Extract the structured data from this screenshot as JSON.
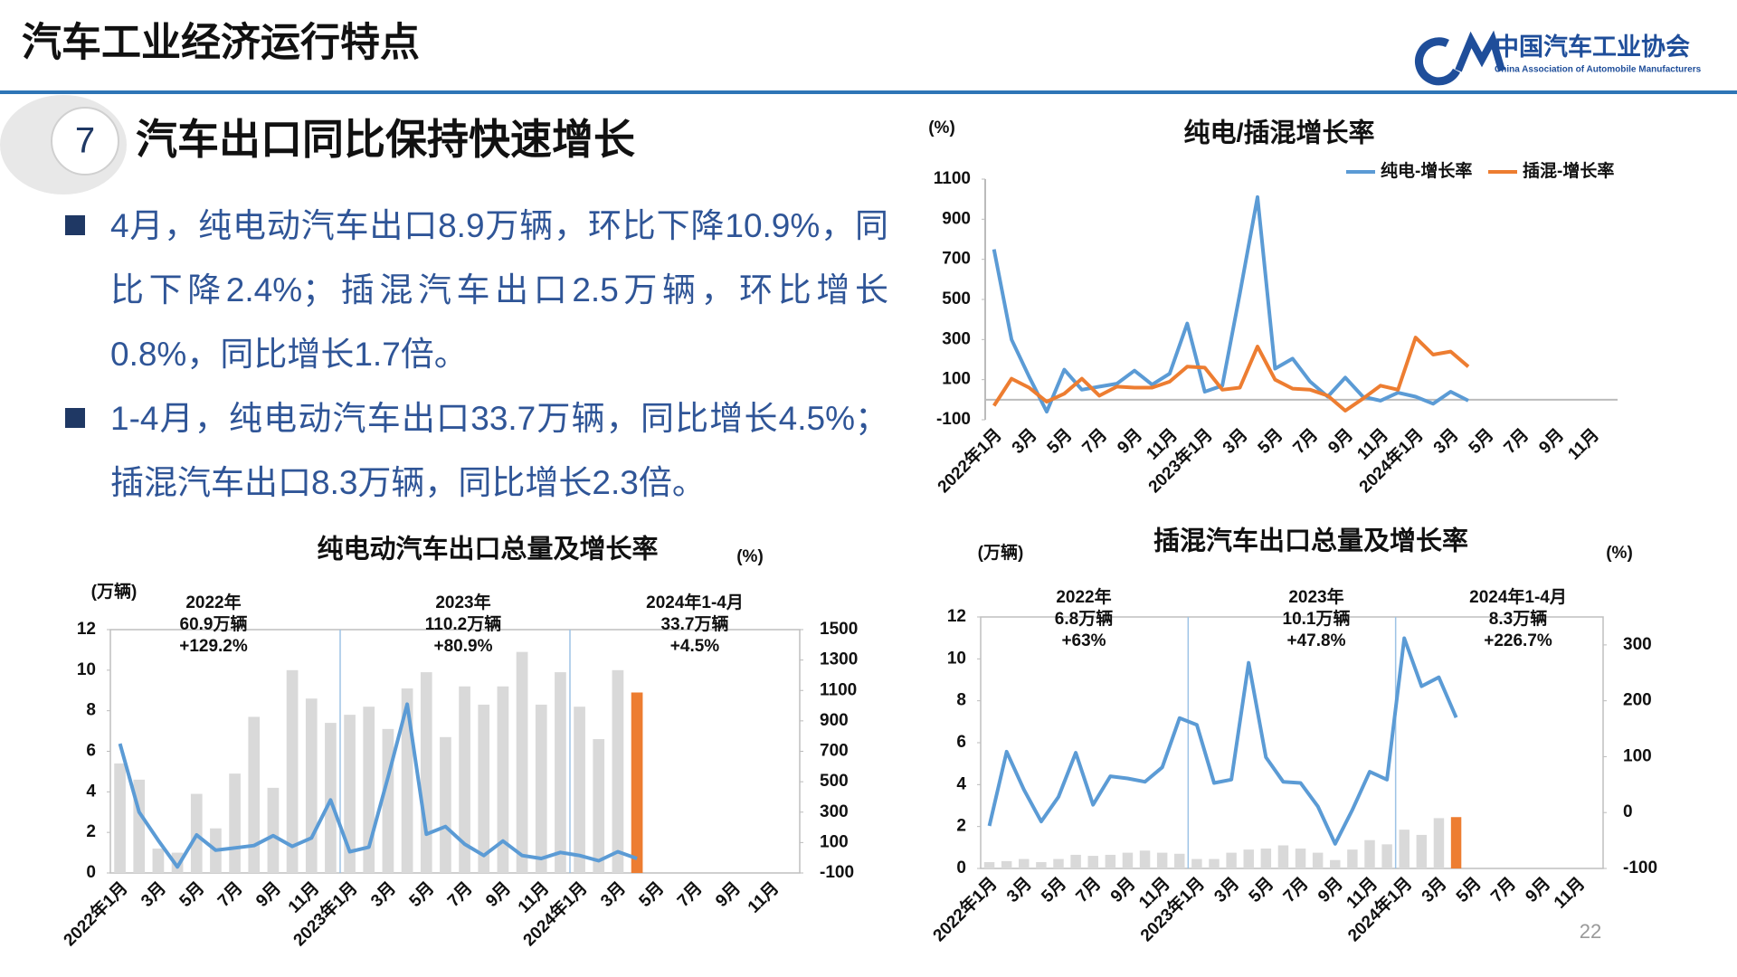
{
  "header": {
    "title": "汽车工业经济运行特点",
    "logo_cn": "中国汽车工业协会",
    "logo_en": "China Association of Automobile Manufacturers"
  },
  "section": {
    "number": 7,
    "title": "汽车出口同比保持快速增长"
  },
  "bullets": [
    "4月，纯电动汽车出口8.9万辆，环比下降10.9%，同比下降2.4%；插混汽车出口2.5万辆，环比增长0.8%，同比增长1.7倍。",
    "1-4月，纯电动汽车出口33.7万辆，同比增长4.5%；插混汽车出口8.3万辆，同比增长2.3倍。"
  ],
  "page_number": 22,
  "chart_data": [
    {
      "type": "line",
      "title": "纯电/插混增长率",
      "y_label": "(%)",
      "categories": [
        "2022年1月",
        null,
        "3月",
        null,
        "5月",
        null,
        "7月",
        null,
        "9月",
        null,
        "11月",
        null,
        "2023年1月",
        null,
        "3月",
        null,
        "5月",
        null,
        "7月",
        null,
        "9月",
        null,
        "11月",
        null,
        "2024年1月",
        null,
        "3月",
        null,
        "5月",
        null,
        "7月",
        null,
        "9月",
        null,
        "11月",
        null
      ],
      "series": [
        {
          "name": "纯电-增长率",
          "color": "#5b9bd5",
          "values": [
            750,
            300,
            115,
            -60,
            150,
            50,
            65,
            80,
            145,
            75,
            130,
            380,
            40,
            70,
            530,
            1010,
            155,
            205,
            90,
            15,
            110,
            15,
            -5,
            35,
            15,
            -20,
            40,
            -5,
            null,
            null,
            null,
            null,
            null,
            null,
            null,
            null
          ]
        },
        {
          "name": "插混-增长率",
          "color": "#ed7d31",
          "values": [
            -30,
            105,
            60,
            -10,
            30,
            105,
            20,
            65,
            60,
            60,
            90,
            165,
            160,
            50,
            60,
            265,
            100,
            55,
            50,
            20,
            -55,
            5,
            70,
            50,
            310,
            225,
            240,
            165,
            null,
            null,
            null,
            null,
            null,
            null,
            null,
            null
          ]
        }
      ],
      "ylim": [
        -100,
        1100
      ],
      "yticks": [
        -100,
        100,
        300,
        500,
        700,
        900,
        1100
      ],
      "legend": "top"
    },
    {
      "type": "combo",
      "title": "纯电动汽车出口总量及增长率",
      "y_label": "(万辆)",
      "y2_label": "(%)",
      "categories": [
        "2022年1月",
        null,
        "3月",
        null,
        "5月",
        null,
        "7月",
        null,
        "9月",
        null,
        "11月",
        null,
        "2023年1月",
        null,
        "3月",
        null,
        "5月",
        null,
        "7月",
        null,
        "9月",
        null,
        "11月",
        null,
        "2024年1月",
        null,
        "3月",
        null,
        "5月",
        null,
        "7月",
        null,
        "9月",
        null,
        "11月",
        null
      ],
      "series": [
        {
          "kind": "bar",
          "color": "#d9d9d9",
          "values": [
            5.4,
            4.6,
            1.2,
            1.0,
            3.9,
            2.2,
            4.9,
            7.7,
            4.2,
            10.0,
            8.6,
            7.4,
            7.8,
            8.2,
            7.1,
            9.1,
            9.9,
            6.7,
            9.2,
            8.3,
            9.2,
            10.9,
            8.3,
            9.9,
            8.2,
            6.6,
            10.0,
            null,
            null,
            null,
            null,
            null,
            null,
            null,
            null,
            null
          ]
        },
        {
          "kind": "bar",
          "color": "#ed7d31",
          "values": [
            null,
            null,
            null,
            null,
            null,
            null,
            null,
            null,
            null,
            null,
            null,
            null,
            null,
            null,
            null,
            null,
            null,
            null,
            null,
            null,
            null,
            null,
            null,
            null,
            null,
            null,
            null,
            8.9,
            null,
            null,
            null,
            null,
            null,
            null,
            null,
            null
          ]
        },
        {
          "kind": "line",
          "axis": "y2",
          "color": "#5b9bd5",
          "values": [
            750,
            300,
            115,
            -60,
            150,
            50,
            65,
            80,
            145,
            75,
            130,
            380,
            40,
            70,
            530,
            1010,
            155,
            205,
            90,
            15,
            110,
            15,
            -5,
            35,
            15,
            -20,
            40,
            -5,
            null,
            null,
            null,
            null,
            null,
            null,
            null,
            null
          ]
        }
      ],
      "ylim": [
        0,
        12
      ],
      "yticks": [
        0,
        2,
        4,
        6,
        8,
        10,
        12
      ],
      "y2lim": [
        -100,
        1500
      ],
      "y2ticks": [
        -100,
        100,
        300,
        500,
        700,
        900,
        1100,
        1300,
        1500
      ],
      "annotations": [
        [
          "2022年",
          "60.9万辆",
          "+129.2%"
        ],
        [
          "2023年",
          "110.2万辆",
          "+80.9%"
        ],
        [
          "2024年1-4月",
          "33.7万辆",
          "+4.5%"
        ]
      ]
    },
    {
      "type": "combo",
      "title": "插混汽车出口总量及增长率",
      "y_label": "(万辆)",
      "y2_label": "(%)",
      "categories": [
        "2022年1月",
        null,
        "3月",
        null,
        "5月",
        null,
        "7月",
        null,
        "9月",
        null,
        "11月",
        null,
        "2023年1月",
        null,
        "3月",
        null,
        "5月",
        null,
        "7月",
        null,
        "9月",
        null,
        "11月",
        null,
        "2024年1月",
        null,
        "3月",
        null,
        "5月",
        null,
        "7月",
        null,
        "9月",
        null,
        "11月",
        null
      ],
      "series": [
        {
          "kind": "bar",
          "color": "#d9d9d9",
          "values": [
            0.3,
            0.35,
            0.45,
            0.3,
            0.45,
            0.65,
            0.6,
            0.65,
            0.75,
            0.85,
            0.75,
            0.7,
            0.45,
            0.45,
            0.75,
            0.9,
            0.95,
            1.1,
            0.95,
            0.75,
            0.4,
            0.9,
            1.35,
            1.15,
            1.85,
            1.6,
            2.4,
            null,
            null,
            null,
            null,
            null,
            null,
            null,
            null,
            null
          ]
        },
        {
          "kind": "bar",
          "color": "#ed7d31",
          "values": [
            null,
            null,
            null,
            null,
            null,
            null,
            null,
            null,
            null,
            null,
            null,
            null,
            null,
            null,
            null,
            null,
            null,
            null,
            null,
            null,
            null,
            null,
            null,
            null,
            null,
            null,
            null,
            2.45,
            null,
            null,
            null,
            null,
            null,
            null,
            null,
            null
          ]
        },
        {
          "kind": "line",
          "axis": "y2",
          "color": "#5b9bd5",
          "values": [
            -24,
            109,
            41,
            -16,
            28,
            107,
            14,
            65,
            61,
            55,
            81,
            169,
            157,
            53,
            59,
            268,
            99,
            55,
            53,
            11,
            -56,
            5,
            73,
            59,
            312,
            226,
            242,
            170,
            null,
            null,
            null,
            null,
            null,
            null,
            null,
            null
          ]
        }
      ],
      "ylim": [
        0,
        12
      ],
      "yticks": [
        0,
        2,
        4,
        6,
        8,
        10,
        12
      ],
      "y2lim": [
        -100,
        350
      ],
      "y2ticks": [
        -100,
        0,
        100,
        200,
        300
      ],
      "annotations": [
        [
          "2022年",
          "6.8万辆",
          "+63%"
        ],
        [
          "2023年",
          "10.1万辆",
          "+47.8%"
        ],
        [
          "2024年1-4月",
          "8.3万辆",
          "+226.7%"
        ]
      ]
    }
  ]
}
